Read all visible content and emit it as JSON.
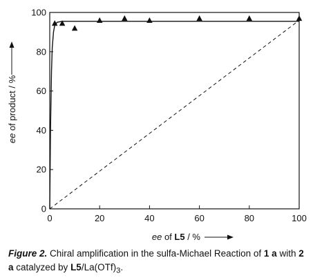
{
  "chart_data": {
    "type": "scatter",
    "xlim": [
      0,
      100
    ],
    "ylim": [
      0,
      100
    ],
    "x_ticks": [
      0,
      20,
      40,
      60,
      80,
      100
    ],
    "y_ticks": [
      0,
      20,
      40,
      60,
      80,
      100
    ],
    "x_tick_labels": [
      "0",
      "20",
      "40",
      "60",
      "80",
      "100"
    ],
    "y_tick_labels": [
      "0",
      "20",
      "40",
      "60",
      "80",
      "100"
    ],
    "xlabel": {
      "italic": "ee",
      "mid": " of ",
      "bold": "L5",
      "tail": " / %"
    },
    "ylabel": {
      "italic": "ee",
      "tail": " of product / %"
    },
    "grid": false,
    "legend": "none",
    "series": [
      {
        "marker": "triangle",
        "x": [
          2,
          5,
          10,
          20,
          30,
          40,
          60,
          80,
          100
        ],
        "y": [
          94.5,
          94.5,
          92,
          96,
          97,
          96,
          97,
          97,
          97
        ]
      }
    ],
    "fit_curve": {
      "style": "solid",
      "points": [
        [
          0,
          0
        ],
        [
          0.3,
          40
        ],
        [
          0.7,
          70
        ],
        [
          1,
          82
        ],
        [
          1.5,
          90
        ],
        [
          2,
          93.5
        ],
        [
          3,
          95
        ],
        [
          5,
          95.5
        ],
        [
          100,
          95.5
        ]
      ]
    },
    "reference_line": {
      "style": "dashed",
      "from": [
        0,
        0
      ],
      "to": [
        100,
        96
      ]
    }
  },
  "caption": {
    "figure_label": "Figure 2.",
    "text_1": " Chiral amplification in the sulfa-Michael Reaction of ",
    "bold_1": "1 a",
    "text_2": " with ",
    "bold_2": "2 a",
    "text_3": " catalyzed by ",
    "bold_3": "L5",
    "text_4": "/La(OTf)",
    "subscript": "3",
    "text_5": "."
  }
}
